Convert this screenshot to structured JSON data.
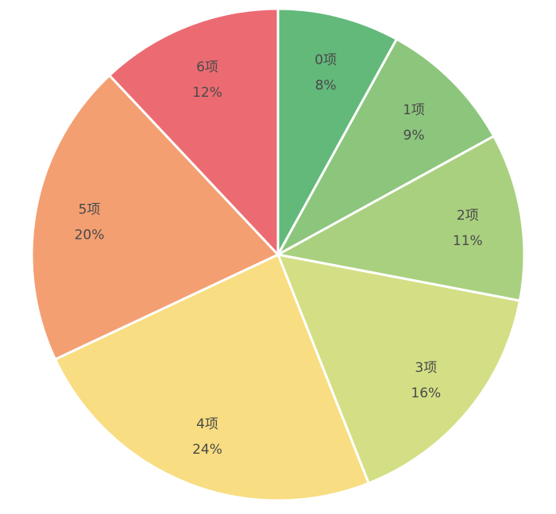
{
  "chart_data": {
    "type": "pie",
    "title": "",
    "start_angle_deg": -90,
    "direction": "clockwise",
    "legend": "none",
    "slices": [
      {
        "label": "0项",
        "value": 8,
        "display": "8%",
        "color": "#63b97a"
      },
      {
        "label": "1项",
        "value": 9,
        "display": "9%",
        "color": "#8cc57c"
      },
      {
        "label": "2项",
        "value": 11,
        "display": "11%",
        "color": "#a9d07f"
      },
      {
        "label": "3项",
        "value": 16,
        "display": "16%",
        "color": "#d4df85"
      },
      {
        "label": "4项",
        "value": 24,
        "display": "24%",
        "color": "#f8dd82"
      },
      {
        "label": "5项",
        "value": 20,
        "display": "20%",
        "color": "#f39f72"
      },
      {
        "label": "6项",
        "value": 12,
        "display": "12%",
        "color": "#ec6b72"
      }
    ]
  }
}
